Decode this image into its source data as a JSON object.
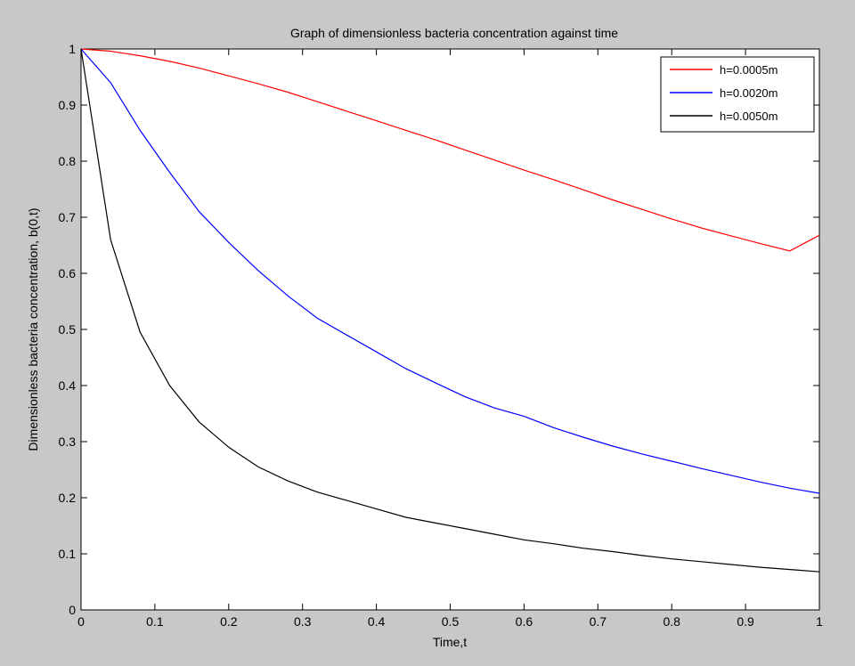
{
  "chart_data": {
    "type": "line",
    "title": "Graph of dimensionless bacteria concentration against time",
    "xlabel": "Time,t",
    "ylabel": "Dimensionless bacteria concentration, b(0,t)",
    "xlim": [
      0,
      1
    ],
    "ylim": [
      0,
      1
    ],
    "grid": false,
    "legend_position": "top-right",
    "x_ticks": [
      "0",
      "0.1",
      "0.2",
      "0.3",
      "0.4",
      "0.5",
      "0.6",
      "0.7",
      "0.8",
      "0.9",
      "1"
    ],
    "y_ticks": [
      "0",
      "0.1",
      "0.2",
      "0.3",
      "0.4",
      "0.5",
      "0.6",
      "0.7",
      "0.8",
      "0.9",
      "1"
    ],
    "x": [
      0,
      0.04,
      0.08,
      0.12,
      0.16,
      0.2,
      0.24,
      0.28,
      0.32,
      0.36,
      0.4,
      0.44,
      0.48,
      0.52,
      0.56,
      0.6,
      0.64,
      0.68,
      0.72,
      0.76,
      0.8,
      0.84,
      0.88,
      0.92,
      0.96,
      1.0
    ],
    "series": [
      {
        "name": "h=0.0005m",
        "color": "#ff0000",
        "values": [
          1.0,
          0.996,
          0.988,
          0.978,
          0.966,
          0.952,
          0.938,
          0.923,
          0.906,
          0.889,
          0.872,
          0.855,
          0.838,
          0.82,
          0.802,
          0.784,
          0.767,
          0.749,
          0.731,
          0.714,
          0.697,
          0.681,
          0.667,
          0.653,
          0.64,
          0.668
        ]
      },
      {
        "name": "h=0.0020m",
        "color": "#0000ff",
        "values": [
          1.0,
          0.94,
          0.855,
          0.78,
          0.71,
          0.655,
          0.605,
          0.56,
          0.52,
          0.49,
          0.46,
          0.43,
          0.405,
          0.38,
          0.36,
          0.345,
          0.325,
          0.308,
          0.292,
          0.278,
          0.265,
          0.252,
          0.24,
          0.228,
          0.217,
          0.208
        ]
      },
      {
        "name": "h=0.0050m",
        "color": "#000000",
        "values": [
          1.0,
          0.66,
          0.495,
          0.4,
          0.335,
          0.29,
          0.255,
          0.23,
          0.21,
          0.195,
          0.18,
          0.165,
          0.155,
          0.145,
          0.135,
          0.125,
          0.118,
          0.11,
          0.104,
          0.097,
          0.091,
          0.086,
          0.081,
          0.076,
          0.072,
          0.068
        ]
      }
    ]
  }
}
